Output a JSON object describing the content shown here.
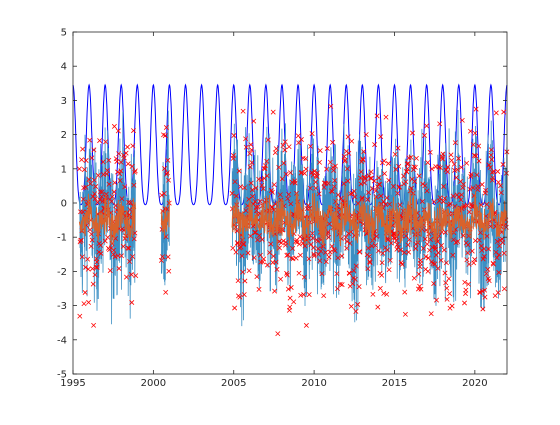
{
  "chart_data": {
    "type": "line",
    "title": "",
    "xlabel": "",
    "ylabel": "",
    "xlim": [
      1995,
      2022
    ],
    "ylim": [
      -5,
      5
    ],
    "grid": false,
    "legend": "none",
    "xticks": [
      1995,
      2000,
      2005,
      2010,
      2015,
      2020
    ],
    "xtick_labels": [
      "1995",
      "2000",
      "2005",
      "2010",
      "2015",
      "2020"
    ],
    "yticks": [
      -5,
      -4,
      -3,
      -2,
      -1,
      0,
      1,
      2,
      3,
      4,
      5
    ],
    "ytick_labels": [
      "-5",
      "-4",
      "-3",
      "-2",
      "-1",
      "0",
      "1",
      "2",
      "3",
      "4",
      "5"
    ],
    "data_segments": [
      [
        1995.4,
        1998.9
      ],
      [
        2000.5,
        2001.0
      ],
      [
        2004.9,
        2022.0
      ]
    ],
    "series": [
      {
        "style": "line",
        "color": "#0000ff",
        "description_points": {
          "x": [
            1995.0,
            1995.25,
            1995.5,
            1995.75,
            1996.0,
            1996.25,
            1996.5,
            1996.75,
            1997.0,
            1997.25,
            1997.5,
            1997.75,
            1998.0,
            1998.25,
            1998.5,
            1998.75,
            1999.0,
            1999.25,
            1999.5,
            1999.75,
            2000.0,
            2000.25,
            2000.5,
            2000.75,
            2001.0,
            2001.25,
            2001.5,
            2001.75,
            2002.0,
            2002.25,
            2002.5,
            2002.75,
            2003.0,
            2003.25,
            2003.5,
            2003.75,
            2004.0,
            2004.25,
            2004.5,
            2004.75,
            2005.0,
            2005.25,
            2005.5,
            2005.75,
            2006.0,
            2006.25,
            2006.5,
            2006.75,
            2007.0,
            2007.25,
            2007.5,
            2007.75,
            2008.0,
            2008.25,
            2008.5,
            2008.75,
            2009.0,
            2009.25,
            2009.5,
            2009.75,
            2010.0,
            2010.25,
            2010.5,
            2010.75,
            2011.0,
            2011.25,
            2011.5,
            2011.75,
            2012.0,
            2012.25,
            2012.5,
            2012.75,
            2013.0,
            2013.25,
            2013.5,
            2013.75,
            2014.0,
            2014.25,
            2014.5,
            2014.75,
            2015.0,
            2015.25,
            2015.5,
            2015.75,
            2016.0,
            2016.25,
            2016.5,
            2016.75,
            2017.0,
            2017.25,
            2017.5,
            2017.75,
            2018.0,
            2018.25,
            2018.5,
            2018.75,
            2019.0,
            2019.25,
            2019.5,
            2019.75,
            2020.0,
            2020.25,
            2020.5,
            2020.75,
            2021.0,
            2021.25,
            2021.5,
            2021.75,
            2022.0
          ],
          "y": [
            3.1,
            1.2,
            -0.4,
            1.2,
            3.1,
            1.2,
            -0.4,
            1.2,
            3.1,
            1.2,
            -0.4,
            1.2,
            3.1,
            1.2,
            -0.4,
            1.2,
            3.1,
            1.2,
            -0.4,
            1.2,
            3.1,
            1.2,
            -0.4,
            1.2,
            3.1,
            1.2,
            -0.4,
            1.2,
            3.1,
            1.2,
            -0.4,
            1.2,
            3.1,
            1.2,
            -0.4,
            1.2,
            3.1,
            1.2,
            -0.4,
            1.2,
            3.1,
            1.2,
            -0.4,
            1.2,
            3.1,
            1.2,
            -0.4,
            1.2,
            3.1,
            1.2,
            -0.4,
            1.2,
            3.1,
            1.2,
            -0.4,
            1.2,
            3.1,
            1.2,
            -0.4,
            1.2,
            3.1,
            1.2,
            -0.4,
            1.2,
            3.1,
            1.2,
            -0.4,
            1.2,
            3.1,
            1.2,
            -0.4,
            1.2,
            3.1,
            1.2,
            -0.4,
            1.2,
            3.1,
            1.2,
            -0.4,
            1.2,
            3.1,
            1.2,
            -0.4,
            1.2,
            3.1,
            1.2,
            -0.4,
            1.2,
            3.1,
            1.2,
            -0.4,
            1.2,
            3.1,
            1.2,
            -0.4,
            1.2,
            3.1,
            1.2,
            -0.4,
            1.2,
            3.1,
            1.2,
            -0.4,
            1.2,
            3.1,
            1.2,
            -0.4,
            1.2,
            3.1
          ]
        }
      },
      {
        "style": "line",
        "color": "#3b8fc4",
        "description": "dense noisy series, roughly -3.5 to 3.5, present only in data segments"
      },
      {
        "style": "line",
        "color": "#d9622b",
        "description": "smoothed series near -0.5, band about -1.2 to 0.3, present only in data segments"
      },
      {
        "style": "marker-x",
        "color": "#ff0000",
        "description": "dense x markers, roughly -4.1 to 4.3, present only in data segments"
      }
    ]
  }
}
